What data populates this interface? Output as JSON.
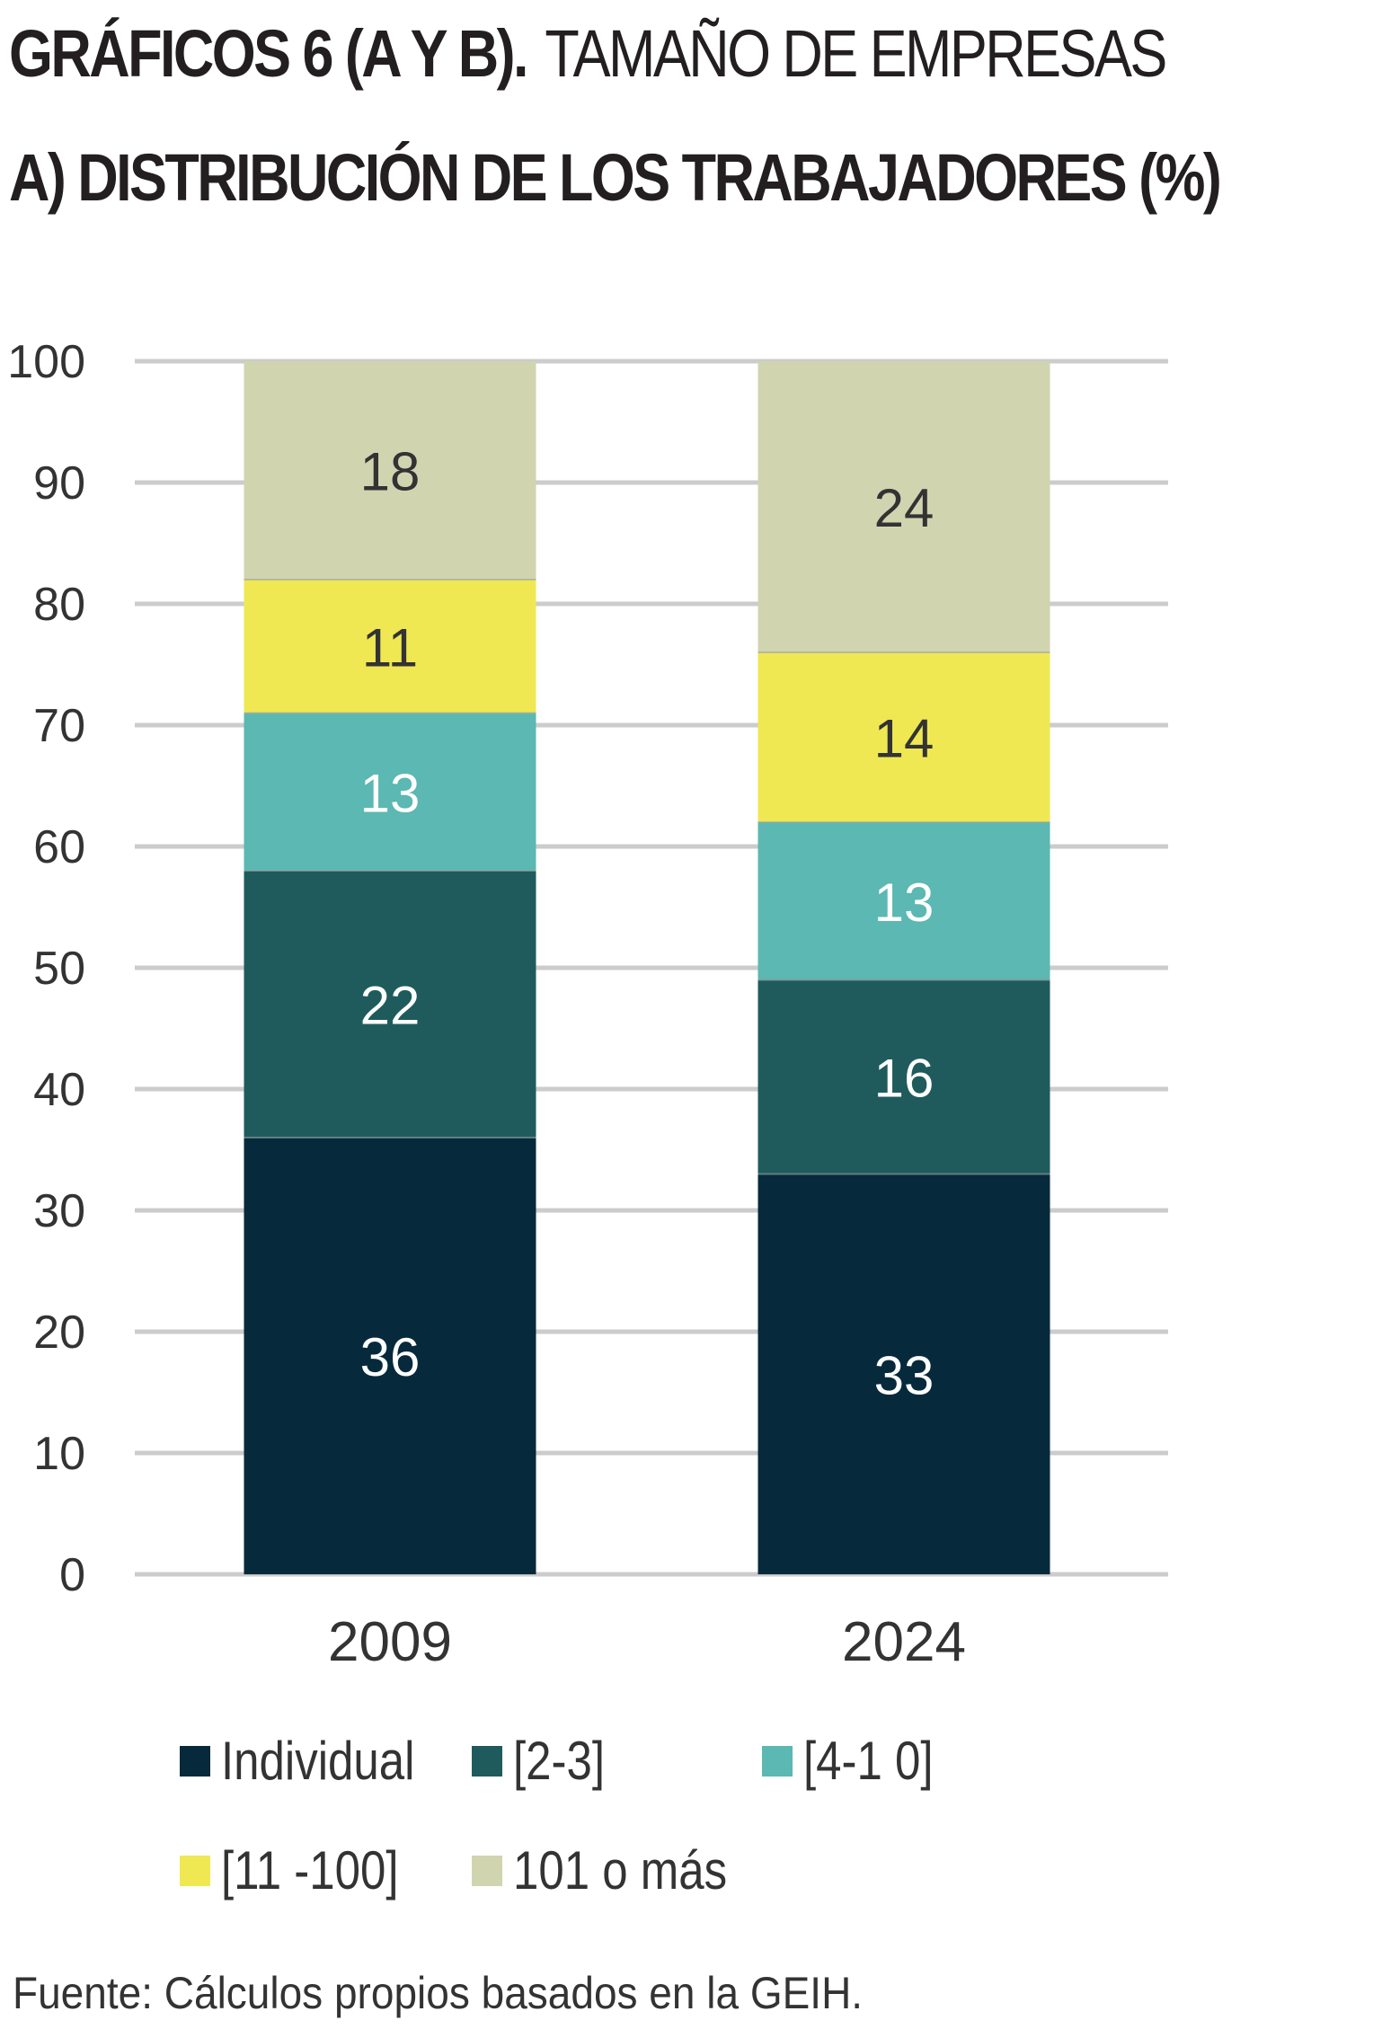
{
  "title": {
    "bold": "GRÁFICOS 6 (A Y B).",
    "light": "TAMAÑO DE EMPRESAS",
    "subtitle": "A) DISTRIBUCIÓN DE LOS TRABAJADORES (%)"
  },
  "source": "Fuente: Cálculos propios basados en la GEIH.",
  "colors": {
    "Individual": "#062a3c",
    "[2-3]": "#1f5b5c",
    "[4-10]": "#5bb8b2",
    "[11-100]": "#efe853",
    "101 o más": "#d0d5b0",
    "grid": "#cccccc",
    "axis_text": "#333333"
  },
  "chart_data": {
    "type": "bar",
    "stacked": true,
    "categories": [
      "2009",
      "2024"
    ],
    "series": [
      {
        "name": "Individual",
        "values": [
          36,
          33
        ],
        "labels": [
          "36",
          "33"
        ],
        "label_color": "#ffffff"
      },
      {
        "name": "[2-3]",
        "values": [
          22,
          16
        ],
        "labels": [
          "22",
          "16"
        ],
        "label_color": "#ffffff"
      },
      {
        "name": "[4-10]",
        "values": [
          13,
          13
        ],
        "labels": [
          "13",
          "13"
        ],
        "label_color": "#ffffff"
      },
      {
        "name": "[11-100]",
        "values": [
          11,
          14
        ],
        "labels": [
          "11",
          "14"
        ],
        "label_color": "#333333"
      },
      {
        "name": "101 o más",
        "values": [
          18,
          24
        ],
        "labels": [
          "18",
          "24"
        ],
        "label_color": "#333333"
      }
    ],
    "ylim": [
      0,
      100
    ],
    "yticks": [
      0,
      10,
      20,
      30,
      40,
      50,
      60,
      70,
      80,
      90,
      100
    ],
    "ytick_labels": [
      "0",
      "10",
      "20",
      "30",
      "40",
      "50",
      "60",
      "70",
      "80",
      "90",
      "100"
    ],
    "grid": true,
    "legend_position": "bottom"
  },
  "legend": [
    {
      "label": "Individual",
      "color": "#062a3c"
    },
    {
      "label": "[2-3]",
      "color": "#1f5b5c"
    },
    {
      "label": "[4-1 0]",
      "color": "#5bb8b2"
    },
    {
      "label": "[11 -100]",
      "color": "#efe853"
    },
    {
      "label": "101 o más",
      "color": "#d0d5b0"
    }
  ]
}
